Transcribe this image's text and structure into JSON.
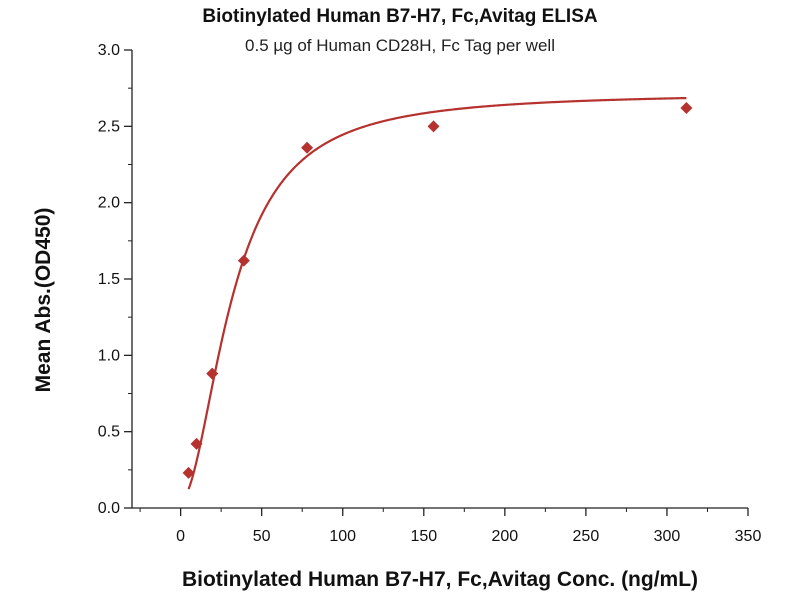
{
  "chart_data": {
    "type": "scatter",
    "title": "Biotinylated Human B7-H7, Fc,Avitag ELISA",
    "subtitle": "0.5 µg of Human CD28H, Fc Tag per well",
    "xlabel": "Biotinylated Human B7-H7, Fc,Avitag Conc. (ng/mL)",
    "ylabel": "Mean Abs.(OD450)",
    "xlim": [
      -30,
      350
    ],
    "ylim": [
      0,
      3.0
    ],
    "xticks": [
      0,
      50,
      100,
      150,
      200,
      250,
      300,
      350
    ],
    "yticks": [
      0.0,
      0.5,
      1.0,
      1.5,
      2.0,
      2.5,
      3.0
    ],
    "xtick_labels": [
      "0",
      "50",
      "100",
      "150",
      "200",
      "250",
      "300",
      "350"
    ],
    "ytick_labels": [
      "0.0",
      "0.5",
      "1.0",
      "1.5",
      "2.0",
      "2.5",
      "3.0"
    ],
    "grid": false,
    "series": [
      {
        "points": [
          {
            "x": 4.9,
            "y": 0.23
          },
          {
            "x": 9.8,
            "y": 0.42
          },
          {
            "x": 19.5,
            "y": 0.88
          },
          {
            "x": 39,
            "y": 1.62
          },
          {
            "x": 78,
            "y": 2.36
          },
          {
            "x": 156,
            "y": 2.5
          },
          {
            "x": 312,
            "y": 2.62
          }
        ],
        "fit_curve": "four-parameter logistic",
        "color": "#b5322f"
      }
    ]
  }
}
